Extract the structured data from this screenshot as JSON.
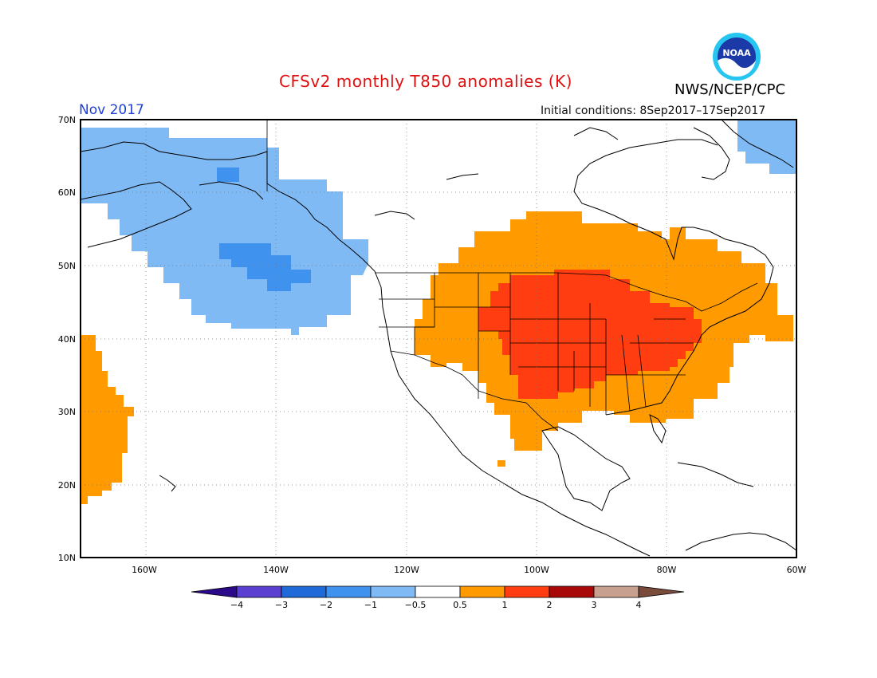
{
  "header": {
    "title": "CFSv2 monthly T850 anomalies (K)",
    "agency": "NWS/NCEP/CPC",
    "month": "Nov 2017",
    "initial_conditions": "Initial conditions: 8Sep2017–17Sep2017"
  },
  "logo": {
    "text": "NOAA",
    "icon": "noaa-logo-icon"
  },
  "map": {
    "lat_labels": [
      "70N",
      "60N",
      "50N",
      "40N",
      "30N",
      "20N",
      "10N"
    ],
    "lon_labels": [
      "160W",
      "140W",
      "120W",
      "100W",
      "80W",
      "60W"
    ],
    "lat_range": [
      10,
      70
    ],
    "lon_range": [
      -170,
      -60
    ]
  },
  "colorbar": {
    "tick_labels": [
      "-4",
      "-3",
      "-2",
      "-1",
      "-0.5",
      "0.5",
      "1",
      "2",
      "3",
      "4"
    ],
    "colors": [
      "#2b0a8a",
      "#5a3fd0",
      "#1e6ad8",
      "#3f93ee",
      "#7fbaf5",
      "#ffffff",
      "#ff9a00",
      "#ff3d10",
      "#a80808",
      "#c8a090",
      "#7a4a3a"
    ]
  },
  "colors": {
    "title_red": "#e01010",
    "month_blue": "#1e3fd8",
    "light_blue": "#7fbaf5",
    "mid_blue": "#3f93ee",
    "orange": "#ff9a00",
    "red": "#ff3d10"
  }
}
